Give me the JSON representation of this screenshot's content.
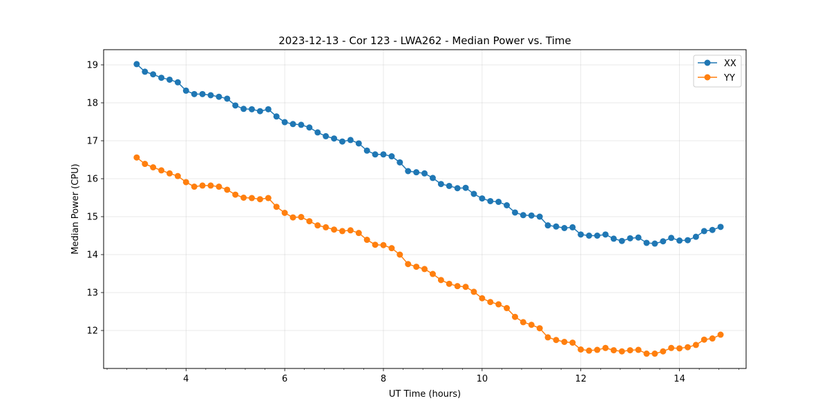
{
  "chart_data": {
    "type": "line",
    "title": "2023-12-13 - Cor 123 - LWA262 - Median Power vs. Time",
    "xlabel": "UT Time (hours)",
    "ylabel": "Median Power (CPU)",
    "xlim": [
      2.33,
      15.35
    ],
    "ylim": [
      11.0,
      19.4
    ],
    "xticks": [
      4,
      6,
      8,
      10,
      12,
      14
    ],
    "yticks": [
      12,
      13,
      14,
      15,
      16,
      17,
      18,
      19
    ],
    "grid": true,
    "legend_position": "top-right",
    "x": [
      3.0,
      3.167,
      3.333,
      3.5,
      3.667,
      3.833,
      4.0,
      4.167,
      4.333,
      4.5,
      4.667,
      4.833,
      5.0,
      5.167,
      5.333,
      5.5,
      5.667,
      5.833,
      6.0,
      6.167,
      6.333,
      6.5,
      6.667,
      6.833,
      7.0,
      7.167,
      7.333,
      7.5,
      7.667,
      7.833,
      8.0,
      8.167,
      8.333,
      8.5,
      8.667,
      8.833,
      9.0,
      9.167,
      9.333,
      9.5,
      9.667,
      9.833,
      10.0,
      10.167,
      10.333,
      10.5,
      10.667,
      10.833,
      11.0,
      11.167,
      11.333,
      11.5,
      11.667,
      11.833,
      12.0,
      12.167,
      12.333,
      12.5,
      12.667,
      12.833,
      13.0,
      13.167,
      13.333,
      13.5,
      13.667,
      13.833,
      14.0,
      14.167,
      14.333,
      14.5,
      14.667,
      14.833
    ],
    "series": [
      {
        "name": "XX",
        "color": "#1f77b4",
        "values": [
          19.02,
          18.82,
          18.75,
          18.66,
          18.61,
          18.54,
          18.32,
          18.23,
          18.23,
          18.2,
          18.16,
          18.11,
          17.93,
          17.84,
          17.83,
          17.78,
          17.83,
          17.64,
          17.49,
          17.44,
          17.42,
          17.35,
          17.22,
          17.12,
          17.06,
          16.98,
          17.02,
          16.93,
          16.74,
          16.64,
          16.64,
          16.59,
          16.43,
          16.2,
          16.17,
          16.14,
          16.02,
          15.86,
          15.81,
          15.75,
          15.76,
          15.6,
          15.48,
          15.41,
          15.39,
          15.3,
          15.11,
          15.04,
          15.03,
          15.0,
          14.77,
          14.74,
          14.7,
          14.72,
          14.53,
          14.5,
          14.5,
          14.53,
          14.42,
          14.36,
          14.43,
          14.45,
          14.31,
          14.29,
          14.35,
          14.44,
          14.37,
          14.38,
          14.47,
          14.62,
          14.65,
          14.73
        ]
      },
      {
        "name": "YY",
        "color": "#ff7f0e",
        "values": [
          16.56,
          16.39,
          16.3,
          16.22,
          16.14,
          16.07,
          15.91,
          15.79,
          15.82,
          15.82,
          15.79,
          15.71,
          15.58,
          15.5,
          15.49,
          15.46,
          15.49,
          15.26,
          15.1,
          14.98,
          14.99,
          14.88,
          14.77,
          14.72,
          14.66,
          14.62,
          14.64,
          14.57,
          14.39,
          14.26,
          14.25,
          14.17,
          14.0,
          13.75,
          13.68,
          13.62,
          13.49,
          13.33,
          13.23,
          13.17,
          13.15,
          13.02,
          12.85,
          12.75,
          12.69,
          12.59,
          12.36,
          12.22,
          12.15,
          12.06,
          11.82,
          11.75,
          11.7,
          11.68,
          11.5,
          11.47,
          11.49,
          11.54,
          11.48,
          11.45,
          11.48,
          11.49,
          11.39,
          11.39,
          11.45,
          11.54,
          11.53,
          11.56,
          11.62,
          11.76,
          11.79,
          11.89
        ]
      }
    ]
  }
}
